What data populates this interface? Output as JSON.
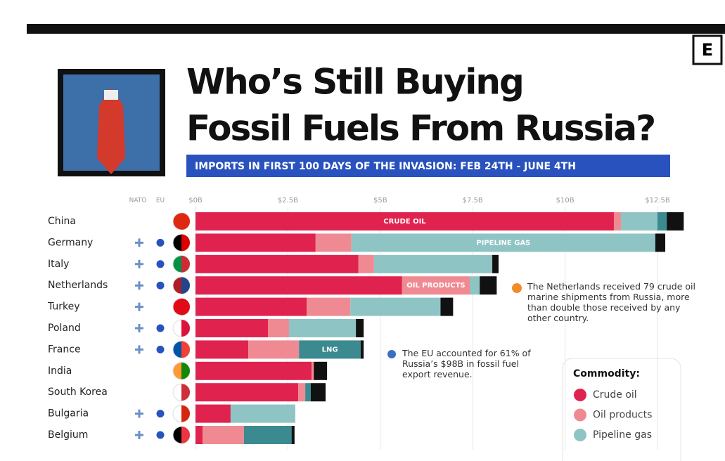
{
  "header": {
    "logo": "E",
    "title_lines": [
      "Who’s Still Buying",
      "Fossil Fuels From Russia?"
    ],
    "subtitle": "IMPORTS IN FIRST 100 DAYS OF THE INVASION:  FEB 24TH - JUNE 4TH"
  },
  "chart_data": {
    "type": "stacked-bar-horizontal",
    "categories": [
      "China",
      "Germany",
      "Italy",
      "Netherlands",
      "Turkey",
      "Poland",
      "France",
      "India",
      "South Korea",
      "Bulgaria",
      "Belgium"
    ],
    "membership_headers": [
      "NATO",
      "EU"
    ],
    "nato": [
      false,
      true,
      true,
      true,
      true,
      true,
      true,
      false,
      false,
      true,
      true
    ],
    "eu": [
      false,
      true,
      true,
      true,
      false,
      true,
      true,
      false,
      false,
      true,
      true
    ],
    "series": [
      {
        "name": "Crude oil",
        "color": "#e0234e",
        "values": [
          11.32,
          3.25,
          4.41,
          5.59,
          3.01,
          1.96,
          1.43,
          3.14,
          2.78,
          0.95,
          0.19
        ]
      },
      {
        "name": "Oil products",
        "color": "#f08a92",
        "values": [
          0.19,
          0.97,
          0.42,
          1.83,
          1.18,
          0.57,
          1.37,
          0.06,
          0.19,
          0,
          1.12
        ]
      },
      {
        "name": "Pipeline gas",
        "color": "#8fc4c4",
        "values": [
          0.99,
          8.22,
          3.2,
          0.27,
          2.44,
          1.81,
          0,
          0,
          0,
          1.75,
          0
        ]
      },
      {
        "color": "#3a8a90",
        "values": [
          0.25,
          0,
          0,
          0,
          0,
          0,
          1.67,
          0,
          0.15,
          0,
          1.29
        ]
      },
      {
        "color": "#111111",
        "values": [
          0.46,
          0.27,
          0.17,
          0.46,
          0.34,
          0.21,
          0.08,
          0.36,
          0.4,
          0,
          0.08
        ]
      }
    ],
    "bar_labels": [
      {
        "text": "CRUDE OIL",
        "series": 0,
        "category": 0
      },
      {
        "text": "PIPELINE GAS",
        "series": 2,
        "category": 1
      },
      {
        "text": "OIL PRODUCTS",
        "series": 1,
        "category": 3
      },
      {
        "text": "LNG",
        "series": 3,
        "category": 6
      }
    ],
    "xlim": [
      0,
      13.5
    ],
    "xticks": [
      {
        "value": 0,
        "label": "$0B"
      },
      {
        "value": 2.5,
        "label": "$2.5B"
      },
      {
        "value": 5,
        "label": "$5B"
      },
      {
        "value": 7.5,
        "label": "$7.5B"
      },
      {
        "value": 10,
        "label": "$10B"
      },
      {
        "value": 12.5,
        "label": "$12.5B"
      }
    ],
    "grid": true,
    "annotations": [
      "The Netherlands received 79 crude oil marine shipments from Russia, more than double those received by any other country.",
      "The EU accounted for 61% of Russia’s $98B in fossil fuel export revenue."
    ],
    "legend_title": "Commodity:"
  }
}
